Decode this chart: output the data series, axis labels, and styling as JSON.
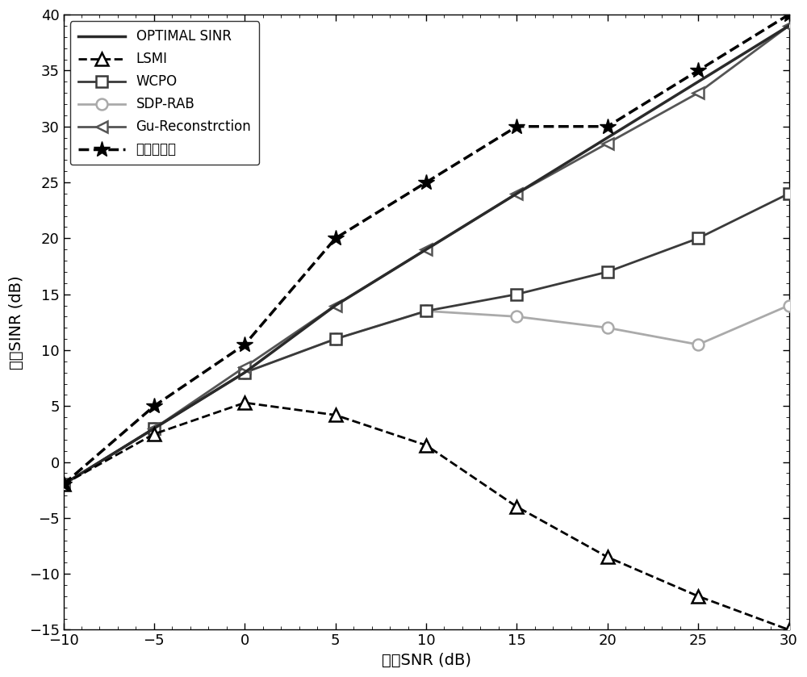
{
  "x": [
    -10,
    -5,
    0,
    5,
    10,
    15,
    20,
    25,
    30
  ],
  "optimal_sinr": [
    -2,
    3,
    8,
    14,
    19,
    24,
    29,
    34,
    39
  ],
  "lsmi": [
    -2,
    2.5,
    5.3,
    4.2,
    1.5,
    -4.0,
    -8.5,
    -12.0,
    -15.0
  ],
  "wcpo": [
    -2,
    3,
    8,
    11,
    13.5,
    15,
    17,
    20,
    24
  ],
  "sdp_rab": [
    -2,
    3,
    8,
    11,
    13.5,
    13.0,
    12.0,
    10.5,
    14.0
  ],
  "gu_recon": [
    -2,
    3,
    8.5,
    14,
    19,
    24,
    28.5,
    33,
    39
  ],
  "proposed": [
    -2,
    5,
    10.5,
    20,
    25,
    30,
    30,
    35,
    40
  ],
  "xlabel": "输入SNR (dB)",
  "ylabel": "输出SINR (dB)",
  "xlim": [
    -10,
    30
  ],
  "ylim": [
    -15,
    40
  ],
  "xticks": [
    -10,
    -5,
    0,
    5,
    10,
    15,
    20,
    25,
    30
  ],
  "yticks": [
    -15,
    -10,
    -5,
    0,
    5,
    10,
    15,
    20,
    25,
    30,
    35,
    40
  ],
  "legend_labels": [
    "OPTIMAL SINR",
    "LSMI",
    "WCPO",
    "SDP-RAB",
    "Gu-Reconstrction",
    "本发明方法"
  ]
}
